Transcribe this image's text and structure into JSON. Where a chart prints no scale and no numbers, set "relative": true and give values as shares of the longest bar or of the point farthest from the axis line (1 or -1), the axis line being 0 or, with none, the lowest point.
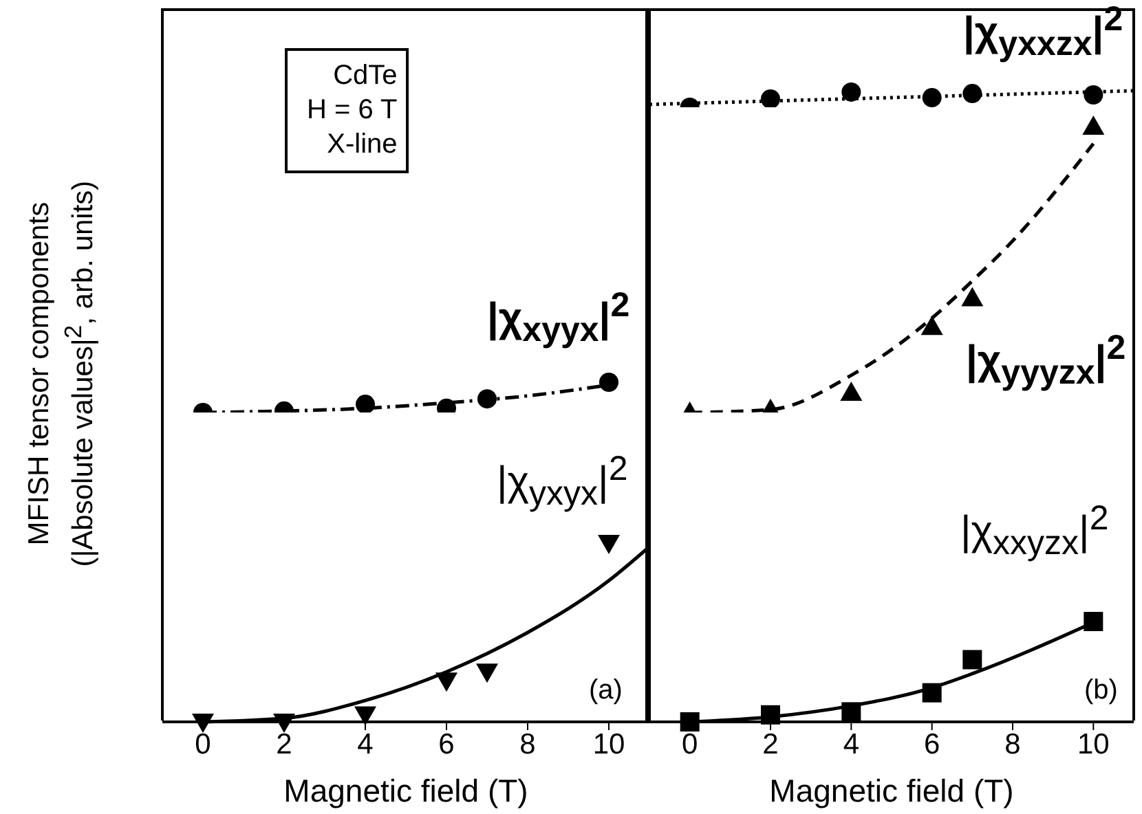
{
  "chart_data": [
    {
      "type": "scatter",
      "relative": true,
      "xlim": [
        -1,
        11
      ],
      "xticks": [
        0,
        2,
        4,
        6,
        8,
        10
      ],
      "tick_labels": false,
      "annotations": [
        "CdTe\nH = 6 T\nX-line"
      ],
      "series": [
        {
          "name": "|χ$_{xyyx}$|$^{2}$",
          "color": "#000000",
          "marker": "circle",
          "x": [
            0,
            2,
            4,
            6,
            7,
            10
          ],
          "values": [
            0,
            0.05,
            0.27,
            0.14,
            0.45,
            1
          ]
        },
        {
          "type": "line",
          "color": "#000000",
          "marker": "none",
          "line_style": "dashdot",
          "x": [
            0,
            2,
            4,
            6,
            8,
            10
          ],
          "values": [
            0,
            0.05,
            0.14,
            0.32,
            0.55,
            0.91
          ]
        }
      ]
    },
    {
      "type": "scatter",
      "relative": true,
      "xlim": [
        -1,
        11
      ],
      "xticks": [
        0,
        2,
        4,
        6,
        8,
        10
      ],
      "xlabel": "Magnetic field (T)",
      "ylabel": "MFISH tensor components\n(|Absolute values|$^{2}$, arb. units)",
      "annotations": [
        "(a)"
      ],
      "series": [
        {
          "name": "|χ$_{yxyx}$|$^{2}$",
          "color": "#000000",
          "marker": "triangle-down",
          "x": [
            0,
            2,
            4,
            6,
            7,
            10
          ],
          "values": [
            0,
            0,
            0.04,
            0.23,
            0.28,
            1
          ]
        },
        {
          "type": "line",
          "color": "#000000",
          "marker": "none",
          "line_style": "solid",
          "x": [
            0,
            2,
            4,
            6,
            8,
            10,
            11
          ],
          "values": [
            0,
            0.02,
            0.12,
            0.28,
            0.5,
            0.79,
            0.98
          ]
        }
      ]
    },
    {
      "type": "scatter",
      "relative": true,
      "xlim": [
        -1,
        11
      ],
      "xticks": [
        0,
        2,
        4,
        6,
        8,
        10
      ],
      "tick_labels": false,
      "series": [
        {
          "name": "|χ$_{yxxzx}$|$^{2}$",
          "color": "#000000",
          "marker": "circle",
          "x": [
            0,
            2,
            4,
            6,
            7,
            10
          ],
          "values": [
            0,
            0.5,
            0.92,
            0.58,
            0.83,
            0.75
          ]
        },
        {
          "type": "line",
          "color": "#000000",
          "marker": "none",
          "line_style": "dotted",
          "x": [
            -1,
            11
          ],
          "values": [
            0.17,
            1
          ]
        }
      ]
    },
    {
      "type": "scatter",
      "relative": true,
      "xlim": [
        -1,
        11
      ],
      "xticks": [
        0,
        2,
        4,
        6,
        8,
        10
      ],
      "tick_labels": false,
      "series": [
        {
          "name": "|χ$_{yyyzx}$|$^{2}$",
          "color": "#000000",
          "marker": "triangle",
          "x": [
            0,
            2,
            4,
            6,
            7,
            10
          ],
          "values": [
            0,
            0.01,
            0.07,
            0.3,
            0.4,
            1
          ]
        },
        {
          "type": "line",
          "color": "#000000",
          "marker": "none",
          "line_style": "dashed",
          "x": [
            0,
            2,
            4,
            6,
            7,
            8,
            10
          ],
          "values": [
            0,
            0.01,
            0.13,
            0.33,
            0.46,
            0.6,
            0.94
          ]
        }
      ]
    },
    {
      "type": "scatter",
      "relative": true,
      "xlim": [
        -1,
        11
      ],
      "xticks": [
        0,
        2,
        4,
        6,
        8,
        10
      ],
      "xlabel": "Magnetic field (T)",
      "annotations": [
        "(b)"
      ],
      "series": [
        {
          "name": "|χ$_{xxyzx}$|$^{2}$",
          "color": "#000000",
          "marker": "square",
          "x": [
            0,
            2,
            4,
            6,
            7,
            10
          ],
          "values": [
            0,
            0.07,
            0.1,
            0.29,
            0.62,
            1
          ]
        },
        {
          "type": "line",
          "color": "#000000",
          "marker": "none",
          "line_style": "solid",
          "x": [
            0,
            2,
            4,
            6,
            7,
            10
          ],
          "values": [
            0,
            0.05,
            0.16,
            0.34,
            0.48,
            0.99
          ]
        }
      ]
    }
  ]
}
